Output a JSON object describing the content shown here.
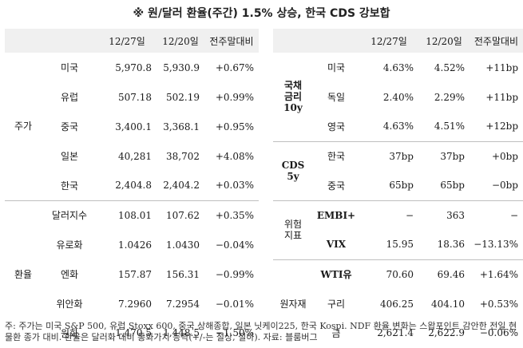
{
  "title": "※ 원/달러 환율(주간) 1.5% 상승, 한국 CDS 강보합",
  "headers": [
    "12/27일",
    "12/20일",
    "전주말대비"
  ],
  "left_groups": [
    {
      "name": "주가",
      "rows": [
        {
          "label": "미국",
          "cur": "5,970.8",
          "prev": "5,930.9",
          "chg": "+0.67%"
        },
        {
          "label": "유럽",
          "cur": "507.18",
          "prev": "502.19",
          "chg": "+0.99%"
        },
        {
          "label": "중국",
          "cur": "3,400.1",
          "prev": "3,368.1",
          "chg": "+0.95%"
        },
        {
          "label": "일본",
          "cur": "40,281",
          "prev": "38,702",
          "chg": "+4.08%"
        },
        {
          "label": "한국",
          "cur": "2,404.8",
          "prev": "2,404.2",
          "chg": "+0.03%"
        }
      ]
    },
    {
      "name": "환율",
      "rows": [
        {
          "label": "달러지수",
          "cur": "108.01",
          "prev": "107.62",
          "chg": "+0.35%"
        },
        {
          "label": "유로화",
          "cur": "1.0426",
          "prev": "1.0430",
          "chg": "−0.04%"
        },
        {
          "label": "엔화",
          "cur": "157.87",
          "prev": "156.31",
          "chg": "−0.99%"
        },
        {
          "label": "위안화",
          "cur": "7.2960",
          "prev": "7.2954",
          "chg": "−0.01%"
        },
        {
          "label": "원화",
          "cur": "1,470.5",
          "prev": "1,448.5",
          "chg": "−1.50%"
        }
      ]
    }
  ],
  "right_groups": [
    {
      "name": "국채\n금리\n10y",
      "rows": [
        {
          "label": "미국",
          "cur": "4.63%",
          "prev": "4.52%",
          "chg": "+11bp"
        },
        {
          "label": "독일",
          "cur": "2.40%",
          "prev": "2.29%",
          "chg": "+11bp"
        },
        {
          "label": "영국",
          "cur": "4.63%",
          "prev": "4.51%",
          "chg": "+12bp"
        }
      ]
    },
    {
      "name": "CDS\n5y",
      "rows": [
        {
          "label": "한국",
          "cur": "37bp",
          "prev": "37bp",
          "chg": "+0bp"
        },
        {
          "label": "중국",
          "cur": "65bp",
          "prev": "65bp",
          "chg": "−0bp"
        }
      ]
    },
    {
      "name": "위험\n지표",
      "rows": [
        {
          "label": "EMBI+",
          "cur": "−",
          "prev": "363",
          "chg": "−"
        },
        {
          "label": "VIX",
          "cur": "15.95",
          "prev": "18.36",
          "chg": "−13.13%"
        }
      ]
    },
    {
      "name": "원자재",
      "rows": [
        {
          "label": "WTI유",
          "cur": "70.60",
          "prev": "69.46",
          "chg": "+1.64%"
        },
        {
          "label": "구리",
          "cur": "406.25",
          "prev": "404.10",
          "chg": "+0.53%"
        },
        {
          "label": "금",
          "cur": "2,621.4",
          "prev": "2,622.9",
          "chg": "−0.06%"
        }
      ]
    }
  ],
  "footnote": "주: 주가는 미국 S&P 500, 유럽 Stoxx 600, 중국 상해종합, 일본 닛케이225, 한국 Kospi. NDF 환율 변화는 스왑포인트 감안한 전일 현물환 종가 대비. 환율은 달러화 대비 통화가치 등락(+/-는 절상, 절하). 자료: 블룸버그"
}
